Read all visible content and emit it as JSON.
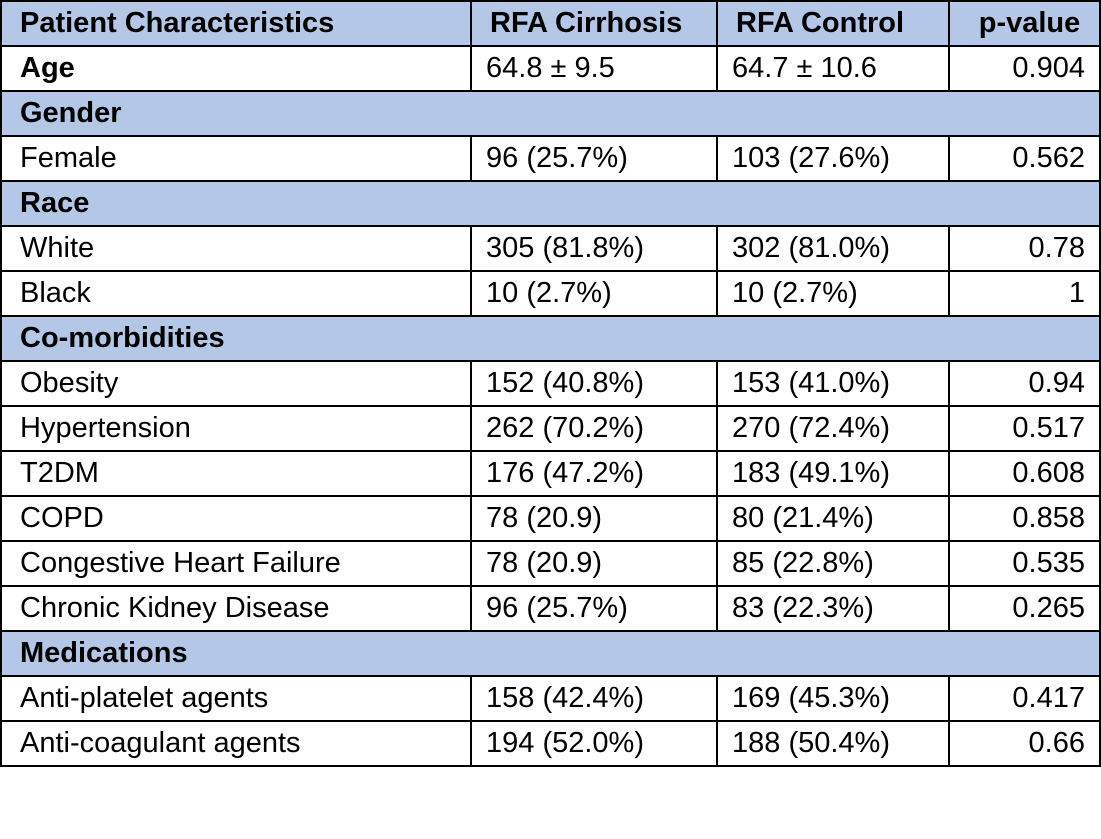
{
  "table": {
    "headers": [
      "Patient Characteristics",
      "RFA Cirrhosis",
      "RFA Control",
      "p-value"
    ],
    "rows": [
      {
        "type": "data",
        "label": "Age",
        "bold": true,
        "cirrhosis": "64.8 ± 9.5",
        "control": "64.7 ± 10.6",
        "p": "0.904"
      },
      {
        "type": "section",
        "label": "Gender"
      },
      {
        "type": "data",
        "label": "Female",
        "cirrhosis": "96 (25.7%)",
        "control": "103 (27.6%)",
        "p": "0.562"
      },
      {
        "type": "section",
        "label": "Race"
      },
      {
        "type": "data",
        "label": "White",
        "cirrhosis": "305 (81.8%)",
        "control": "302 (81.0%)",
        "p": "0.78"
      },
      {
        "type": "data",
        "label": "Black",
        "cirrhosis": "10 (2.7%)",
        "control": "10 (2.7%)",
        "p": "1"
      },
      {
        "type": "section",
        "label": "Co-morbidities"
      },
      {
        "type": "data",
        "label": "Obesity",
        "cirrhosis": "152 (40.8%)",
        "control": "153 (41.0%)",
        "p": "0.94"
      },
      {
        "type": "data",
        "label": "Hypertension",
        "cirrhosis": "262 (70.2%)",
        "control": "270 (72.4%)",
        "p": "0.517"
      },
      {
        "type": "data",
        "label": "T2DM",
        "cirrhosis": "176 (47.2%)",
        "control": "183 (49.1%)",
        "p": "0.608"
      },
      {
        "type": "data",
        "label": "COPD",
        "cirrhosis": "78 (20.9)",
        "control": "80 (21.4%)",
        "p": "0.858"
      },
      {
        "type": "data",
        "label": "Congestive Heart Failure",
        "cirrhosis": "78 (20.9)",
        "control": "85 (22.8%)",
        "p": "0.535"
      },
      {
        "type": "data",
        "label": "Chronic Kidney Disease",
        "cirrhosis": "96 (25.7%)",
        "control": "83 (22.3%)",
        "p": "0.265"
      },
      {
        "type": "section",
        "label": "Medications"
      },
      {
        "type": "data",
        "label": "Anti-platelet agents",
        "cirrhosis": "158 (42.4%)",
        "control": "169 (45.3%)",
        "p": "0.417"
      },
      {
        "type": "data",
        "label": "Anti-coagulant agents",
        "cirrhosis": "194 (52.0%)",
        "control": "188 (50.4%)",
        "p": "0.66"
      }
    ]
  },
  "colors": {
    "header_bg": "#b4c7e7",
    "border": "#000000"
  }
}
